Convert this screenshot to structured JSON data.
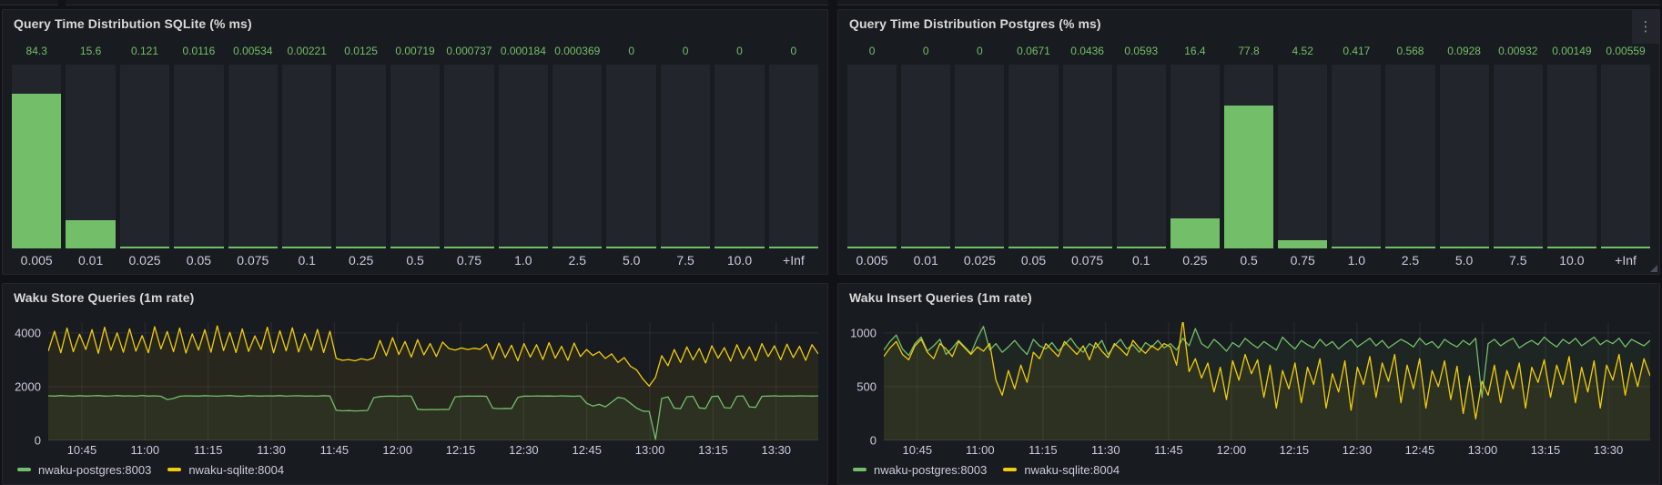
{
  "page": {
    "background": "#111217",
    "panel_background": "#181b1f",
    "accent_green": "#73bf69",
    "accent_yellow": "#f2cc0c",
    "axis_text_color": "#ccccdc"
  },
  "icons": {
    "kebab": "⋮"
  },
  "chart_data": [
    {
      "type": "bar",
      "title": "Query Time Distribution SQLite (% ms)",
      "categories": [
        "0.005",
        "0.01",
        "0.025",
        "0.05",
        "0.075",
        "0.1",
        "0.25",
        "0.5",
        "0.75",
        "1.0",
        "2.5",
        "5.0",
        "7.5",
        "10.0",
        "+Inf"
      ],
      "values": [
        84.3,
        15.6,
        0.121,
        0.0116,
        0.00534,
        0.00221,
        0.0125,
        0.00719,
        0.000737,
        0.000184,
        0.000369,
        0,
        0,
        0,
        0
      ],
      "value_labels": [
        "84.3",
        "15.6",
        "0.121",
        "0.0116",
        "0.00534",
        "0.00221",
        "0.0125",
        "0.00719",
        "0.000737",
        "0.000184",
        "0.000369",
        "0",
        "0",
        "0",
        "0"
      ],
      "xlabel": "",
      "ylabel": "",
      "ylim": [
        0,
        100
      ],
      "grid": false,
      "bar_color": "#73bf69",
      "track_color": "#22252b",
      "value_color": "#73bf69"
    },
    {
      "type": "bar",
      "title": "Query Time Distribution Postgres (% ms)",
      "categories": [
        "0.005",
        "0.01",
        "0.025",
        "0.05",
        "0.075",
        "0.1",
        "0.25",
        "0.5",
        "0.75",
        "1.0",
        "2.5",
        "5.0",
        "7.5",
        "10.0",
        "+Inf"
      ],
      "values": [
        0,
        0,
        0,
        0.0671,
        0.0436,
        0.0593,
        16.4,
        77.8,
        4.52,
        0.417,
        0.568,
        0.0928,
        0.00932,
        0.00149,
        0.00559
      ],
      "value_labels": [
        "0",
        "0",
        "0",
        "0.0671",
        "0.0436",
        "0.0593",
        "16.4",
        "77.8",
        "4.52",
        "0.417",
        "0.568",
        "0.0928",
        "0.00932",
        "0.00149",
        "0.00559"
      ],
      "xlabel": "",
      "ylabel": "",
      "ylim": [
        0,
        100
      ],
      "grid": false,
      "bar_color": "#73bf69",
      "track_color": "#22252b",
      "value_color": "#73bf69"
    },
    {
      "type": "line",
      "title": "Waku Store Queries (1m rate)",
      "x_range": [
        637,
        820
      ],
      "xticks": [
        {
          "label": "10:45",
          "min": 645
        },
        {
          "label": "11:00",
          "min": 660
        },
        {
          "label": "11:15",
          "min": 675
        },
        {
          "label": "11:30",
          "min": 690
        },
        {
          "label": "11:45",
          "min": 705
        },
        {
          "label": "12:00",
          "min": 720
        },
        {
          "label": "12:15",
          "min": 735
        },
        {
          "label": "12:30",
          "min": 750
        },
        {
          "label": "12:45",
          "min": 765
        },
        {
          "label": "13:00",
          "min": 780
        },
        {
          "label": "13:15",
          "min": 795
        },
        {
          "label": "13:30",
          "min": 810
        }
      ],
      "yticks": [
        0,
        2000,
        4000
      ],
      "ylim": [
        0,
        4400
      ],
      "grid": true,
      "legend_position": "bottom",
      "series": [
        {
          "name": "nwaku-postgres:8003",
          "color": "#73bf69",
          "values": [
            1660,
            1650,
            1670,
            1655,
            1645,
            1665,
            1650,
            1660,
            1670,
            1648,
            1655,
            1668,
            1652,
            1660,
            1645,
            1672,
            1650,
            1658,
            1640,
            1520,
            1560,
            1640,
            1660,
            1652,
            1648,
            1665,
            1655,
            1645,
            1660,
            1670,
            1650,
            1642,
            1664,
            1655,
            1648,
            1660,
            1652,
            1668,
            1645,
            1658,
            1662,
            1650,
            1655,
            1645,
            1665,
            1652,
            1120,
            1100,
            1110,
            1095,
            1105,
            1115,
            1590,
            1630,
            1645,
            1650,
            1640,
            1655,
            1645,
            1160,
            1140,
            1150,
            1145,
            1155,
            1150,
            1620,
            1640,
            1650,
            1645,
            1650,
            1640,
            1200,
            1180,
            1190,
            1185,
            1600,
            1650,
            1645,
            1655,
            1648,
            1652,
            1645,
            1658,
            1650,
            1642,
            1655,
            1380,
            1280,
            1340,
            1250,
            1420,
            1600,
            1560,
            1380,
            1200,
            1090,
            1080,
            40,
            1560,
            1620,
            1200,
            1180,
            1620,
            1640,
            1210,
            1190,
            1630,
            1650,
            1220,
            1200,
            1640,
            1655,
            1250,
            1230,
            1640,
            1650,
            1660,
            1645,
            1655,
            1650,
            1660,
            1655,
            1648,
            1660
          ]
        },
        {
          "name": "nwaku-sqlite:8004",
          "color": "#f2cc0c",
          "values": [
            3320,
            4060,
            3260,
            4180,
            3300,
            3950,
            3380,
            4120,
            3240,
            4210,
            3350,
            4000,
            3280,
            4150,
            3320,
            3900,
            3260,
            4230,
            3400,
            4050,
            3300,
            4180,
            3250,
            3960,
            3360,
            4120,
            3280,
            4260,
            3340,
            4020,
            3270,
            4150,
            3310,
            3890,
            3380,
            4210,
            3260,
            4080,
            3330,
            4190,
            3290,
            3970,
            3350,
            4130,
            3270,
            4060,
            3050,
            2980,
            3010,
            2960,
            3040,
            2990,
            3070,
            3720,
            3150,
            3820,
            3200,
            3680,
            3100,
            3750,
            3180,
            3600,
            3120,
            3660,
            3420,
            3360,
            3440,
            3380,
            3430,
            3390,
            3580,
            3020,
            3620,
            3080,
            3540,
            2960,
            3600,
            3100,
            3560,
            3010,
            3640,
            3060,
            3500,
            2980,
            3620,
            3120,
            3380,
            3160,
            3300,
            3050,
            3220,
            2900,
            3080,
            2760,
            2620,
            2280,
            2020,
            2350,
            3150,
            2780,
            3380,
            2900,
            3480,
            3000,
            3420,
            2880,
            3520,
            3060,
            3450,
            2950,
            3560,
            3040,
            3480,
            2960,
            3600,
            3120,
            3520,
            3000,
            3580,
            3080,
            3500,
            2980,
            3560,
            3220
          ]
        }
      ]
    },
    {
      "type": "line",
      "title": "Waku Insert Queries (1m rate)",
      "x_range": [
        637,
        820
      ],
      "xticks": [
        {
          "label": "10:45",
          "min": 645
        },
        {
          "label": "11:00",
          "min": 660
        },
        {
          "label": "11:15",
          "min": 675
        },
        {
          "label": "11:30",
          "min": 690
        },
        {
          "label": "11:45",
          "min": 705
        },
        {
          "label": "12:00",
          "min": 720
        },
        {
          "label": "12:15",
          "min": 735
        },
        {
          "label": "12:30",
          "min": 750
        },
        {
          "label": "12:45",
          "min": 765
        },
        {
          "label": "13:00",
          "min": 780
        },
        {
          "label": "13:15",
          "min": 795
        },
        {
          "label": "13:30",
          "min": 810
        }
      ],
      "yticks": [
        0,
        500,
        1000
      ],
      "ylim": [
        0,
        1100
      ],
      "grid": true,
      "legend_position": "bottom",
      "series": [
        {
          "name": "nwaku-postgres:8003",
          "color": "#73bf69",
          "values": [
            840,
            920,
            980,
            850,
            790,
            900,
            960,
            830,
            880,
            940,
            800,
            860,
            930,
            870,
            810,
            950,
            1060,
            840,
            900,
            820,
            870,
            930,
            860,
            800,
            940,
            880,
            850,
            910,
            830,
            890,
            950,
            870,
            820,
            900,
            860,
            930,
            800,
            880,
            940,
            850,
            890,
            820,
            910,
            870,
            930,
            860,
            900,
            840,
            950,
            880,
            1040,
            900,
            860,
            940,
            890,
            830,
            910,
            870,
            950,
            900,
            860,
            920,
            880,
            840,
            960,
            900,
            850,
            930,
            890,
            860,
            940,
            880,
            920,
            850,
            900,
            940,
            870,
            910,
            950,
            880,
            930,
            860,
            900,
            940,
            910,
            870,
            950,
            890,
            920,
            860,
            940,
            900,
            870,
            930,
            890,
            950,
            400,
            900,
            940,
            880,
            920,
            950,
            860,
            900,
            930,
            890,
            960,
            910,
            870,
            940,
            900,
            950,
            880,
            920,
            960,
            890,
            930,
            900,
            950,
            870,
            940,
            910,
            880,
            930
          ]
        },
        {
          "name": "nwaku-sqlite:8004",
          "color": "#f2cc0c",
          "values": [
            780,
            860,
            920,
            800,
            750,
            880,
            940,
            820,
            760,
            900,
            850,
            780,
            920,
            860,
            800,
            870,
            830,
            900,
            560,
            420,
            650,
            480,
            700,
            540,
            820,
            760,
            900,
            840,
            780,
            920,
            860,
            800,
            880,
            750,
            910,
            830,
            770,
            900,
            850,
            790,
            930,
            860,
            810,
            880,
            840,
            900,
            870,
            700,
            1120,
            640,
            760,
            580,
            720,
            450,
            680,
            380,
            740,
            560,
            800,
            620,
            750,
            400,
            700,
            300,
            650,
            480,
            720,
            350,
            680,
            520,
            760,
            300,
            620,
            450,
            740,
            280,
            680,
            520,
            780,
            400,
            720,
            550,
            800,
            350,
            700,
            480,
            760,
            300,
            650,
            500,
            740,
            380,
            690,
            250,
            600,
            200,
            550,
            420,
            700,
            350,
            650,
            480,
            720,
            300,
            680,
            540,
            750,
            400,
            700,
            520,
            780,
            350,
            680,
            450,
            740,
            300,
            700,
            560,
            800,
            420,
            720,
            500,
            760,
            600
          ]
        }
      ]
    }
  ]
}
